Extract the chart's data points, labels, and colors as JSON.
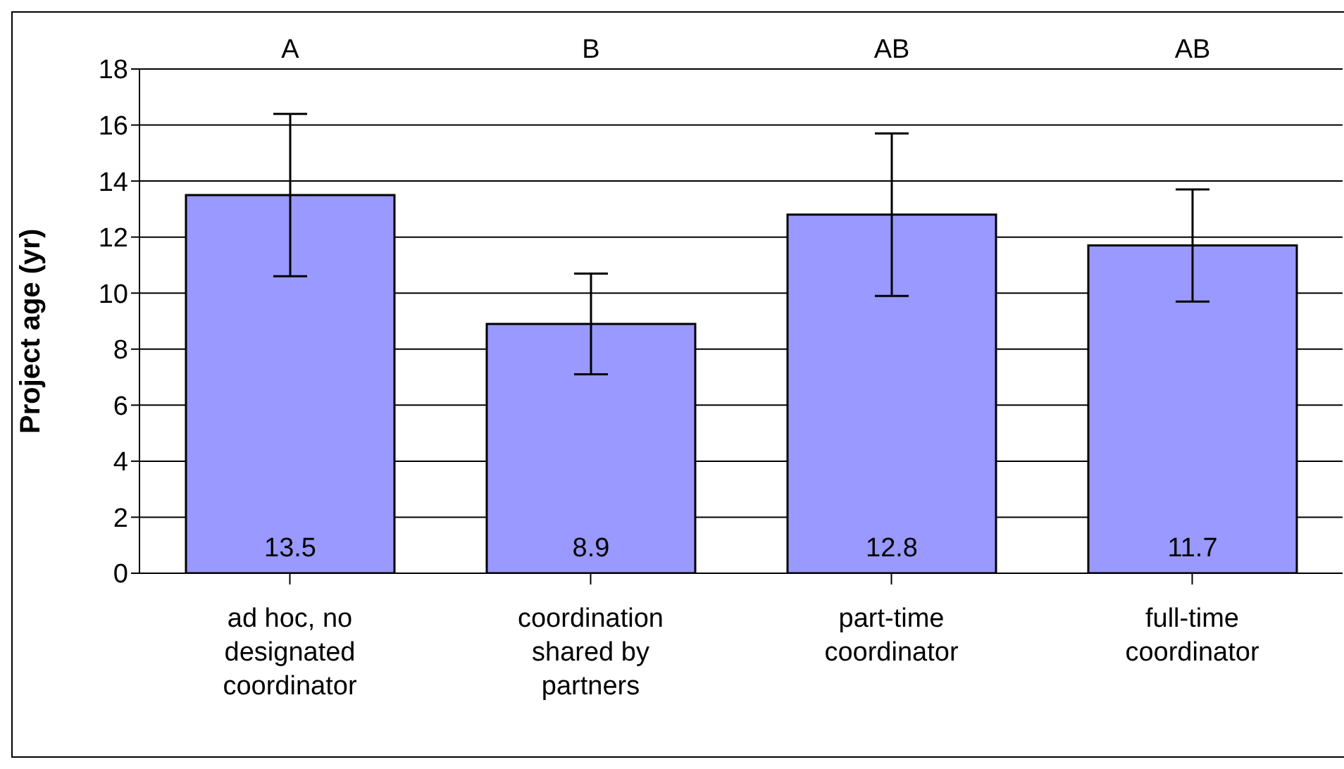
{
  "chart_data": {
    "type": "bar",
    "ylabel": "Project age (yr)",
    "categories": [
      "ad hoc, no\ndesignated\ncoordinator",
      "coordination\nshared by\npartners",
      "part-time\ncoordinator",
      "full-time\ncoordinator"
    ],
    "values": [
      13.5,
      8.9,
      12.8,
      11.7
    ],
    "errors": [
      2.9,
      1.8,
      2.9,
      2.0
    ],
    "color": "#9999ff",
    "ylim": [
      0,
      18
    ],
    "yticks": [
      0,
      2,
      4,
      6,
      8,
      10,
      12,
      14,
      16,
      18
    ],
    "grid": "y",
    "legend": false,
    "data_labels": true,
    "annotations": [
      "A",
      "B",
      "AB",
      "AB"
    ]
  }
}
